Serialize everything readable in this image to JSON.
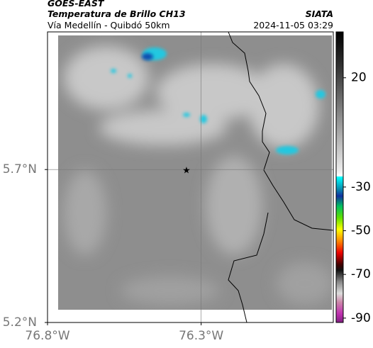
{
  "header": {
    "title": "GOES-EAST",
    "subtitle": "Temperatura de Brillo CH13",
    "route": "Vía Medellín - Quibdó 50km",
    "source": "SIATA",
    "timestamp": "2024-11-05 03:29"
  },
  "map": {
    "xlim": [
      -76.8,
      -75.87
    ],
    "ylim": [
      5.2,
      6.15
    ],
    "xticks": [
      {
        "value": -76.8,
        "label": "76.8°W"
      },
      {
        "value": -76.3,
        "label": "76.3°W"
      }
    ],
    "yticks": [
      {
        "value": 5.2,
        "label": "5.2°N"
      },
      {
        "value": 5.7,
        "label": "5.7°N"
      }
    ],
    "grid": true
  },
  "colorbar": {
    "lim": [
      -92,
      41
    ],
    "ticks": [
      20,
      -30,
      -50,
      -70,
      -90
    ]
  }
}
